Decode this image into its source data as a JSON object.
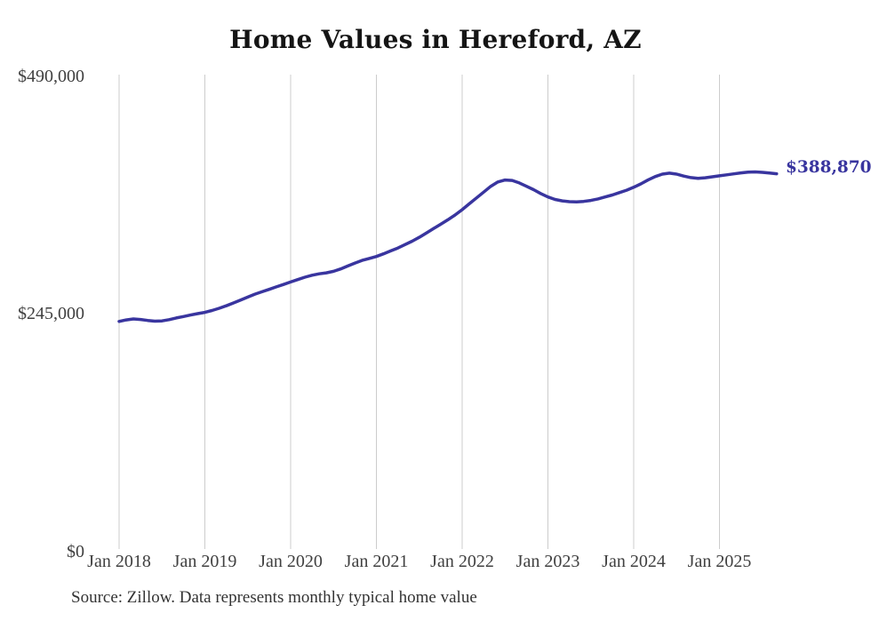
{
  "page": {
    "background": "#ffffff"
  },
  "title": "Home Values in Hereford, AZ",
  "source_note": "Source: Zillow. Data represents monthly typical home value",
  "end_label": "$388,870",
  "colors": {
    "line": "#39359f",
    "end_label_text": "#39359f",
    "grid": "#cccccc",
    "axis_text": "#404040",
    "title_text": "#151515",
    "source_text": "#333333",
    "background": "#ffffff"
  },
  "chart_data": {
    "type": "line",
    "title": "Home Values in Hereford, AZ",
    "x_start": "2018-01",
    "x_end": "2025-09",
    "x_frequency": "monthly",
    "x_tick_labels": [
      "Jan 2018",
      "Jan 2019",
      "Jan 2020",
      "Jan 2021",
      "Jan 2022",
      "Jan 2023",
      "Jan 2024",
      "Jan 2025"
    ],
    "y_tick_labels": [
      "$0",
      "$245,000",
      "$490,000"
    ],
    "y_ticks": [
      0,
      245000,
      490000
    ],
    "ylim": [
      0,
      490000
    ],
    "grid": "vertical-only",
    "legend": "none",
    "annotations": [
      {
        "text": "$388,870",
        "position": "line-end"
      }
    ],
    "source": "Source: Zillow. Data represents monthly typical home value",
    "series": [
      {
        "name": "Typical home value",
        "final_value": 388870,
        "final_value_label": "$388,870",
        "values": [
          237000,
          238500,
          239500,
          239000,
          238000,
          237200,
          237500,
          238800,
          240500,
          242000,
          243500,
          245000,
          246300,
          248200,
          250500,
          253000,
          256000,
          259000,
          262000,
          265000,
          267500,
          270000,
          272500,
          275000,
          277500,
          280000,
          282500,
          284500,
          286000,
          287000,
          288500,
          291000,
          294000,
          297000,
          299800,
          301800,
          303800,
          306500,
          309500,
          312500,
          316000,
          319500,
          323500,
          328000,
          332500,
          337000,
          341500,
          346500,
          352000,
          358000,
          364000,
          370000,
          376000,
          380500,
          382500,
          382000,
          379500,
          376000,
          372500,
          368500,
          365000,
          362500,
          361000,
          360200,
          360000,
          360500,
          361500,
          363000,
          365000,
          367000,
          369500,
          372000,
          375000,
          378500,
          382500,
          386000,
          388500,
          389500,
          388500,
          386500,
          385000,
          384200,
          384800,
          385800,
          386800,
          387800,
          388800,
          389800,
          390500,
          390800,
          390400,
          389600,
          388870
        ]
      }
    ]
  }
}
